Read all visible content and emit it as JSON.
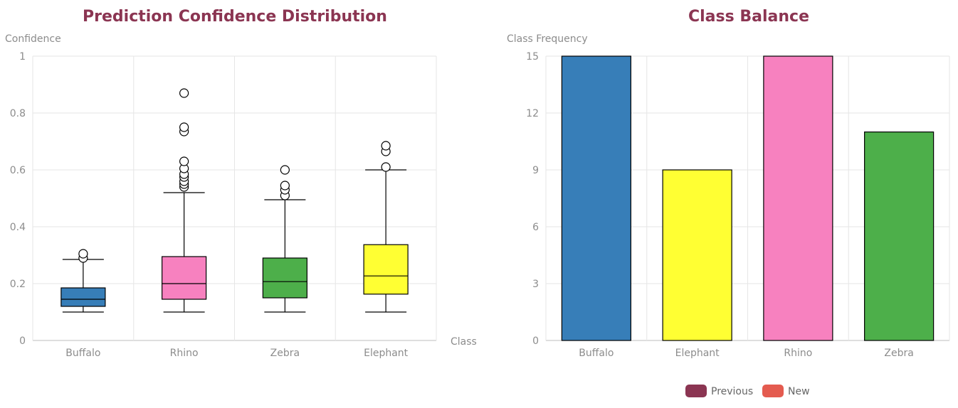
{
  "colors": {
    "title": "#8b3552",
    "Buffalo": "#377eb8",
    "Rhino": "#f781bf",
    "Zebra": "#4daf4a",
    "Elephant": "#ffff33",
    "legend_previous": "#8b3552",
    "legend_new": "#e45b4f"
  },
  "chart_data": [
    {
      "type": "box",
      "title": "Prediction Confidence Distribution",
      "xlabel": "Class",
      "ylabel": "Confidence",
      "ylim": [
        0,
        1
      ],
      "yticks": [
        0,
        0.2,
        0.4,
        0.6,
        0.8,
        1
      ],
      "ytick_labels": [
        "0",
        "0.2",
        "0.4",
        "0.6",
        "0.8",
        "1"
      ],
      "grid": true,
      "categories": [
        "Buffalo",
        "Rhino",
        "Zebra",
        "Elephant"
      ],
      "boxes": [
        {
          "name": "Buffalo",
          "whisker_low": 0.1,
          "q1": 0.12,
          "median": 0.145,
          "q3": 0.185,
          "whisker_high": 0.285,
          "outliers": [
            0.29,
            0.305
          ]
        },
        {
          "name": "Rhino",
          "whisker_low": 0.1,
          "q1": 0.145,
          "median": 0.2,
          "q3": 0.295,
          "whisker_high": 0.52,
          "outliers": [
            0.54,
            0.55,
            0.56,
            0.575,
            0.585,
            0.605,
            0.63,
            0.735,
            0.75,
            0.87
          ]
        },
        {
          "name": "Zebra",
          "whisker_low": 0.1,
          "q1": 0.15,
          "median": 0.207,
          "q3": 0.29,
          "whisker_high": 0.495,
          "outliers": [
            0.51,
            0.53,
            0.545,
            0.6
          ]
        },
        {
          "name": "Elephant",
          "whisker_low": 0.1,
          "q1": 0.163,
          "median": 0.227,
          "q3": 0.337,
          "whisker_high": 0.6,
          "outliers": [
            0.61,
            0.665,
            0.685
          ]
        }
      ]
    },
    {
      "type": "bar",
      "title": "Class Balance",
      "xlabel": "",
      "ylabel": "Class Frequency",
      "ylim": [
        0,
        15
      ],
      "yticks": [
        0,
        3,
        6,
        9,
        12,
        15
      ],
      "ytick_labels": [
        "0",
        "3",
        "6",
        "9",
        "12",
        "15"
      ],
      "grid": true,
      "categories": [
        "Buffalo",
        "Elephant",
        "Rhino",
        "Zebra"
      ],
      "values": [
        15,
        9,
        15,
        11
      ],
      "legend": {
        "position": "bottom",
        "items": [
          {
            "label": "Previous",
            "color": "#8b3552"
          },
          {
            "label": "New",
            "color": "#e45b4f"
          }
        ]
      }
    }
  ]
}
